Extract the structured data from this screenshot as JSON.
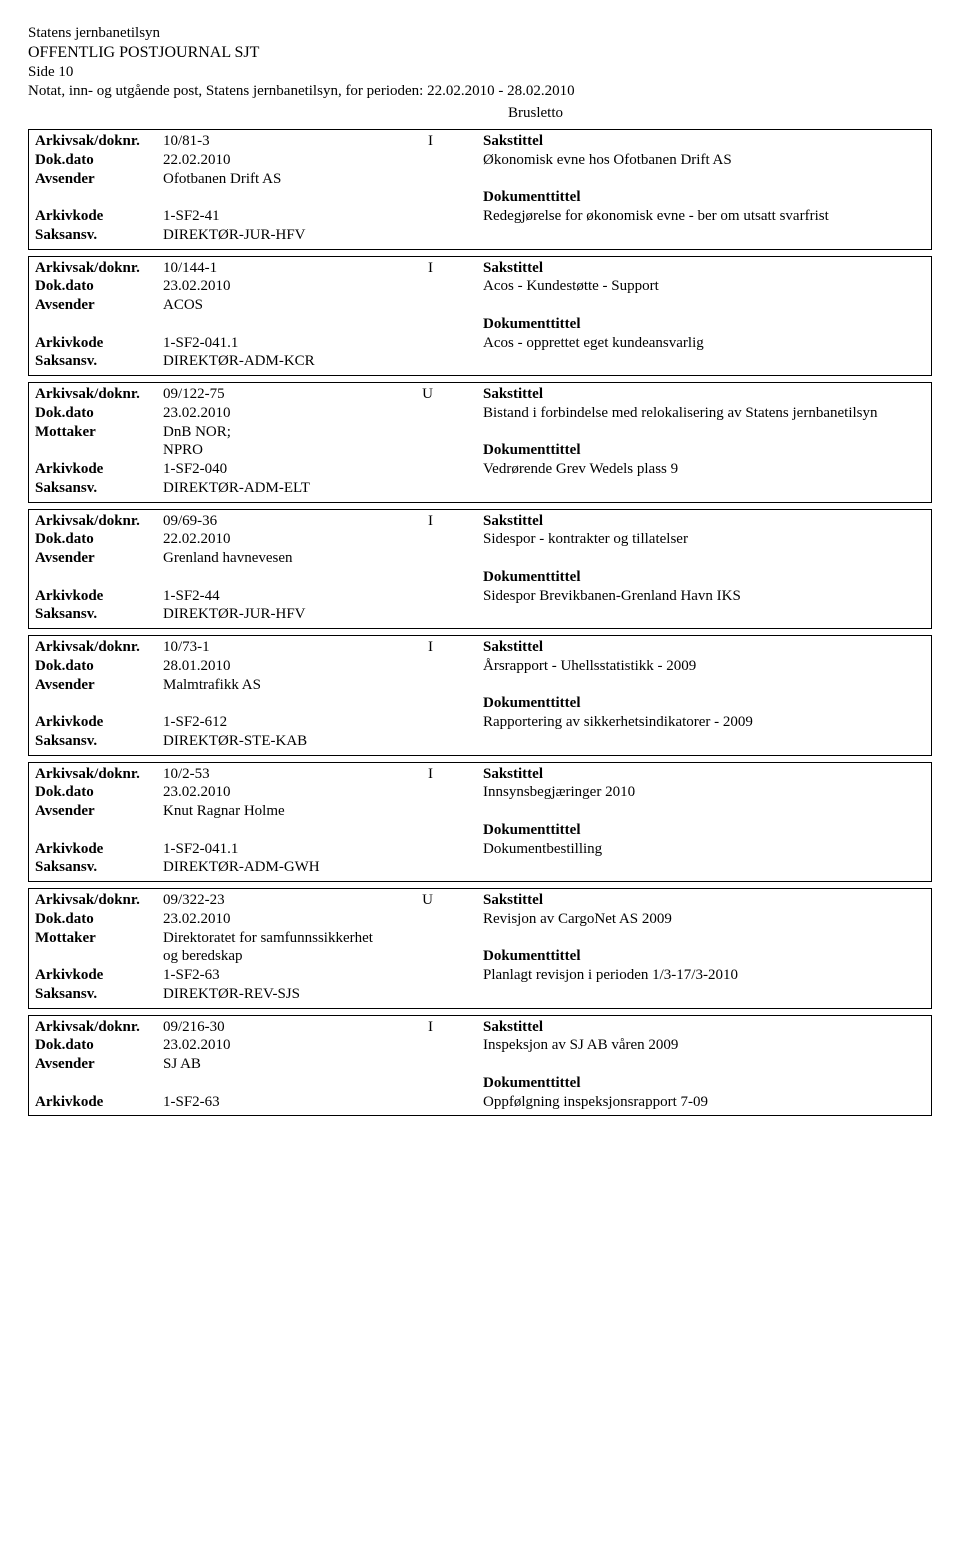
{
  "header": {
    "org": "Statens jernbanetilsyn",
    "title": "OFFENTLIG POSTJOURNAL SJT",
    "page": "Side 10",
    "period_line": "Notat, inn- og utgående post, Statens jernbanetilsyn, for perioden: 22.02.2010 - 28.02.2010"
  },
  "labels": {
    "arkivsak": "Arkivsak/doknr.",
    "dokdato": "Dok.dato",
    "avsender": "Avsender",
    "mottaker": "Mottaker",
    "arkivkode": "Arkivkode",
    "saksansv": "Saksansv.",
    "sakstittel": "Sakstittel",
    "dokumenttittel": "Dokumenttittel"
  },
  "pre_entry_note": "Brusletto",
  "entries": [
    {
      "arkivsak": "10/81-3",
      "io": "I",
      "dokdato": "22.02.2010",
      "party_label": "Avsender",
      "party": "Ofotbanen Drift AS",
      "arkivkode": "1-SF2-41",
      "saksansv": "DIREKTØR-JUR-HFV",
      "sakstittel": "Økonomisk evne hos Ofotbanen Drift AS",
      "dokumenttittel": "Redegjørelse for økonomisk evne - ber om utsatt svarfrist"
    },
    {
      "arkivsak": "10/144-1",
      "io": "I",
      "dokdato": "23.02.2010",
      "party_label": "Avsender",
      "party": "ACOS",
      "arkivkode": "1-SF2-041.1",
      "saksansv": "DIREKTØR-ADM-KCR",
      "sakstittel": "Acos - Kundestøtte - Support",
      "dokumenttittel": "Acos - opprettet eget kundeansvarlig"
    },
    {
      "arkivsak": "09/122-75",
      "io": "U",
      "dokdato": "23.02.2010",
      "party_label": "Mottaker",
      "party": "DnB NOR;",
      "party2": "NPRO",
      "arkivkode": "1-SF2-040",
      "saksansv": "DIREKTØR-ADM-ELT",
      "sakstittel": "Bistand i forbindelse med relokalisering av Statens jernbanetilsyn",
      "dokumenttittel": "Vedrørende Grev Wedels plass 9"
    },
    {
      "arkivsak": "09/69-36",
      "io": "I",
      "dokdato": "22.02.2010",
      "party_label": "Avsender",
      "party": "Grenland havnevesen",
      "arkivkode": "1-SF2-44",
      "saksansv": "DIREKTØR-JUR-HFV",
      "sakstittel": "Sidespor - kontrakter og tillatelser",
      "dokumenttittel": "Sidespor Brevikbanen-Grenland Havn IKS"
    },
    {
      "arkivsak": "10/73-1",
      "io": "I",
      "dokdato": "28.01.2010",
      "party_label": "Avsender",
      "party": "Malmtrafikk AS",
      "arkivkode": "1-SF2-612",
      "saksansv": "DIREKTØR-STE-KAB",
      "sakstittel": "Årsrapport - Uhellsstatistikk - 2009",
      "dokumenttittel": "Rapportering av sikkerhetsindikatorer - 2009"
    },
    {
      "arkivsak": "10/2-53",
      "io": "I",
      "dokdato": "23.02.2010",
      "party_label": "Avsender",
      "party": "Knut Ragnar Holme",
      "arkivkode": "1-SF2-041.1",
      "saksansv": "DIREKTØR-ADM-GWH",
      "sakstittel": "Innsynsbegjæringer 2010",
      "dokumenttittel": "Dokumentbestilling"
    },
    {
      "arkivsak": "09/322-23",
      "io": "U",
      "dokdato": "23.02.2010",
      "party_label": "Mottaker",
      "party": "Direktoratet for samfunnssikkerhet",
      "party2": "og beredskap",
      "arkivkode": "1-SF2-63",
      "saksansv": "DIREKTØR-REV-SJS",
      "sakstittel": "Revisjon av CargoNet AS 2009",
      "dokumenttittel": "Planlagt revisjon i perioden 1/3-17/3-2010"
    },
    {
      "arkivsak": "09/216-30",
      "io": "I",
      "dokdato": "23.02.2010",
      "party_label": "Avsender",
      "party": "SJ AB",
      "arkivkode": "1-SF2-63",
      "saksansv": "",
      "sakstittel": "Inspeksjon av SJ AB våren 2009",
      "dokumenttittel": "Oppfølgning inspeksjonsrapport 7-09",
      "no_saksansv": true
    }
  ]
}
